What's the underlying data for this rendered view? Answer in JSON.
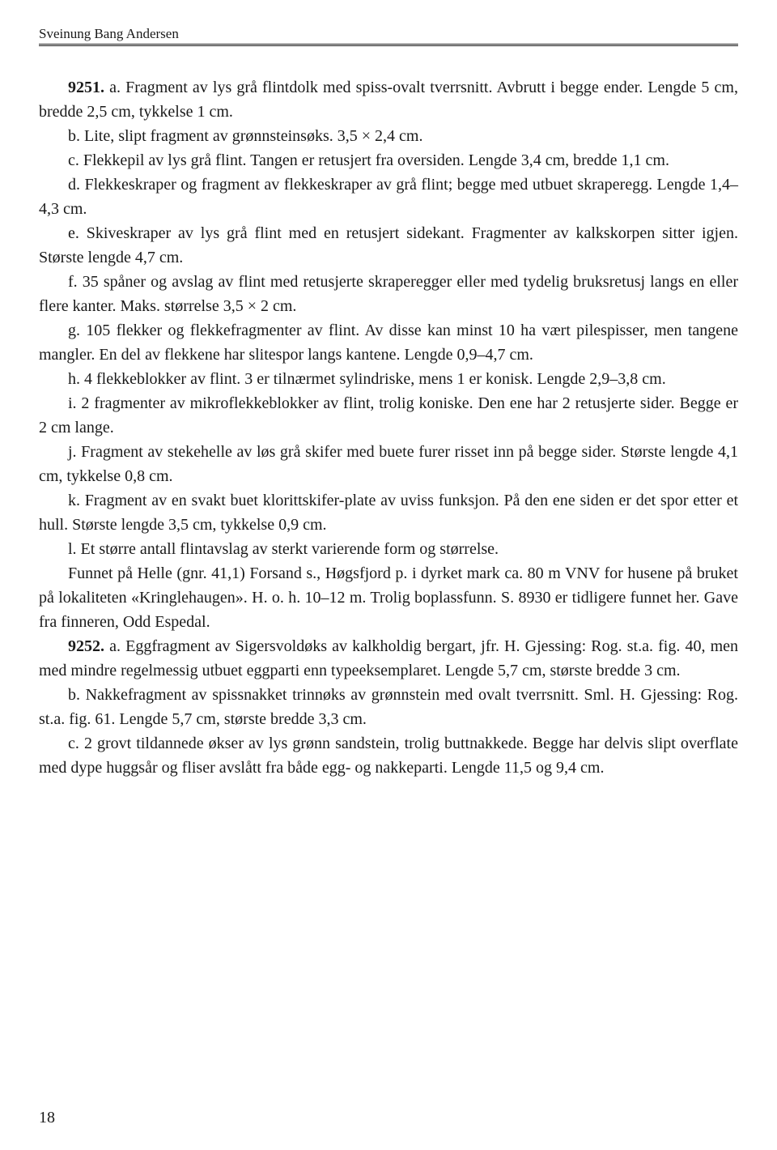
{
  "header": {
    "author": "Sveinung Bang Andersen"
  },
  "paragraphs": [
    {
      "bold": "9251.",
      "text": " a. Fragment av lys grå flintdolk med spiss-ovalt tverrsnitt. Avbrutt i begge ender. Lengde 5 cm, bredde 2,5 cm, tykkelse 1 cm."
    },
    {
      "text": "b. Lite, slipt fragment av grønnsteinsøks. 3,5 × 2,4 cm."
    },
    {
      "text": "c. Flekkepil av lys grå flint. Tangen er retusjert fra oversiden. Lengde 3,4 cm, bredde 1,1 cm."
    },
    {
      "text": "d. Flekkeskraper og fragment av flekkeskraper av grå flint; begge med ut­buet skraperegg. Lengde 1,4–4,3 cm."
    },
    {
      "text": "e. Skiveskraper av lys grå flint med en retusjert sidekant. Fragmenter av kalkskorpen sitter igjen. Største lengde 4,7 cm."
    },
    {
      "text": "f. 35 spåner og avslag av flint med retusjerte skraperegger eller med tydelig bruksretusj langs en eller flere kanter. Maks. størrelse 3,5 × 2 cm."
    },
    {
      "text": "g. 105 flekker og flekkefragmenter av flint. Av disse kan minst 10 ha vært pilespisser, men tangene mangler. En del av flekkene har slitespor langs kantene. Lengde 0,9–4,7 cm."
    },
    {
      "text": "h. 4 flekkeblokker av flint. 3 er tilnærmet sylindriske, mens 1 er konisk. Lengde 2,9–3,8 cm."
    },
    {
      "text": "i. 2 fragmenter av mikroflekkeblokker av flint, trolig koniske. Den ene har 2 retusjerte sider. Begge er 2 cm lange."
    },
    {
      "text": "j. Fragment av stekehelle av løs grå skifer med buete furer risset inn på begge sider. Største lengde 4,1 cm, tykkelse 0,8 cm."
    },
    {
      "text": "k. Fragment av en svakt buet klorittskifer-plate av uviss funksjon. På den ene siden er det spor etter et hull. Største lengde 3,5 cm, tykkelse 0,9 cm."
    },
    {
      "text": "l. Et større antall flintavslag av sterkt varierende form og størrelse."
    },
    {
      "text": "Funnet på Helle (gnr. 41,1) Forsand s., Høgsfjord p. i dyrket mark ca. 80 m VNV for husene på bruket på lokaliteten «Kringlehaugen». H. o. h. 10–12 m. Trolig boplassfunn. S. 8930 er tidligere funnet her. Gave fra finneren, Odd Espedal."
    },
    {
      "bold": "9252.",
      "text": " a. Eggfragment av Sigersvoldøks av kalkholdig bergart, jfr. H. Gjessing: Rog. st.a. fig. 40, men med mindre regelmessig utbuet eggparti enn typeeksemplaret. Lengde 5,7 cm, største bredde 3 cm."
    },
    {
      "text": "b. Nakkefragment av spissnakket trinnøks av grønnstein med ovalt tverr­snitt. Sml. H. Gjessing: Rog. st.a. fig. 61. Lengde 5,7 cm, største bredde 3,3 cm."
    },
    {
      "text": "c. 2 grovt tildannede økser av lys grønn sandstein, trolig buttnakkede. Begge har delvis slipt overflate med dype huggsår og fliser avslått fra både egg- og nakkeparti. Lengde 11,5 og 9,4 cm."
    }
  ],
  "pageNumber": "18"
}
